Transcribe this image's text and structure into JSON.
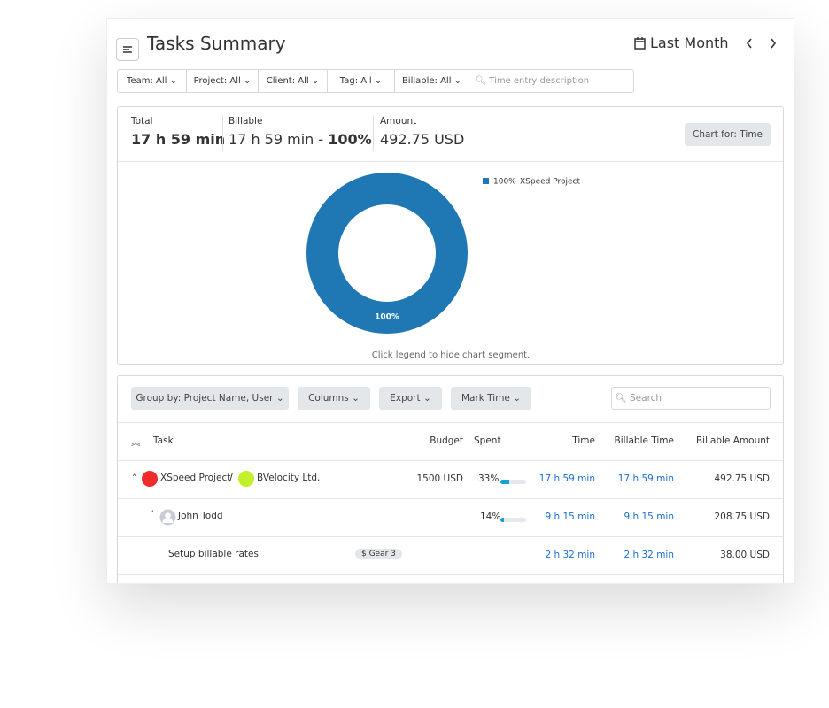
{
  "header": {
    "title": "Tasks Summary",
    "period": "Last Month"
  },
  "filters": {
    "items": [
      "Team: All",
      "Project: All",
      "Client: All",
      "Tag: All",
      "Billable: All"
    ],
    "search_placeholder": "Time entry description"
  },
  "summary": {
    "total": {
      "label": "Total",
      "value": "17 h 59 min"
    },
    "billable": {
      "label": "Billable",
      "value": "17 h 59 min",
      "separator": "-",
      "percent": "100%"
    },
    "amount": {
      "label": "Amount",
      "value": "492.75 USD"
    },
    "chart_button": "Chart for: Time"
  },
  "chart": {
    "type": "pie",
    "categories": [
      "XSpeed Project"
    ],
    "values": [
      100
    ],
    "value_labels": [
      "100%"
    ],
    "colors": [
      "#1f77b4"
    ],
    "note": "Click legend to hide chart segment."
  },
  "toolbar": {
    "buttons": [
      "Group by: Project Name, User",
      "Columns",
      "Export",
      "Mark Time"
    ],
    "search_placeholder": "Search"
  },
  "table": {
    "headers": [
      "Task",
      "Budget",
      "Spent",
      "Time",
      "Billable Time",
      "Billable Amount"
    ],
    "project_row": {
      "project": "XSpeed Project",
      "divider": "/",
      "client": "BVelocity Ltd.",
      "budget": "1500 USD",
      "spent": {
        "value": 33,
        "label": "33%"
      },
      "time": "17 h 59 min",
      "billable_time": "17 h 59 min",
      "billable_amount": "492.75 USD"
    },
    "user_row": {
      "user": "John Todd",
      "spent": {
        "value": 14,
        "label": "14%"
      },
      "time": "9 h 15 min",
      "billable_time": "9 h 15 min",
      "billable_amount": "208.75 USD"
    },
    "task_row": {
      "task": "Setup billable rates",
      "tag": "$ Gear 3",
      "time": "2 h 32 min",
      "billable_time": "2 h 32 min",
      "billable_amount": "38.00 USD"
    }
  }
}
